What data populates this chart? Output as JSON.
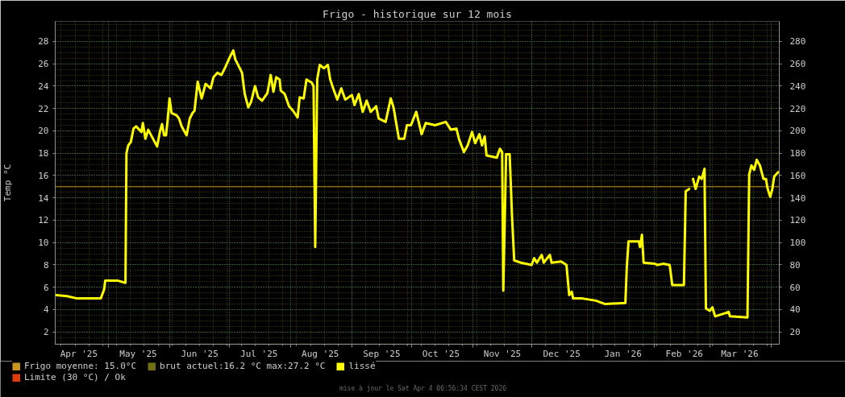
{
  "chart_data": {
    "type": "line",
    "title": "Frigo - historique sur 12 mois",
    "ylabel": "Temp °C",
    "annotations": [
      "mise à jour le Sat Apr 4 06:56:34 CEST 2026"
    ],
    "x": [
      "2025-04-04T12:00",
      "2025-04-10",
      "2025-04-15",
      "2025-04-27",
      "2025-04-28T17:00",
      "2025-04-29T07:00",
      "2025-05-05T10:00",
      "2025-05-09T12:00",
      "2025-05-10T00:00",
      "2025-05-10T22:00",
      "2025-05-12T05:00",
      "2025-05-13T14:00",
      "2025-05-14T22:00",
      "2025-05-17T14:00",
      "2025-05-18T07:00",
      "2025-05-19T14:00",
      "2025-05-21",
      "2025-05-25T12:00",
      "2025-05-27",
      "2025-05-28",
      "2025-05-29",
      "2025-05-30",
      "2025-05-30T19:00",
      "2025-05-31T19:00",
      "2025-06-01T19:00",
      "2025-06-04T07:00",
      "2025-06-05T14:00",
      "2025-06-06T22:00",
      "2025-06-09T10:00",
      "2025-06-11",
      "2025-06-12T10:00",
      "2025-06-13T10:00",
      "2025-06-15",
      "2025-06-17",
      "2025-06-19",
      "2025-06-21T14:00",
      "2025-06-23",
      "2025-06-25",
      "2025-06-27",
      "2025-06-29",
      "2025-07-01",
      "2025-07-03",
      "2025-07-04",
      "2025-07-06",
      "2025-07-07T10:00",
      "2025-07-08T19:00",
      "2025-07-10T14:00",
      "2025-07-12",
      "2025-07-14",
      "2025-07-15T14:00",
      "2025-07-17T14:00",
      "2025-07-20T07:00",
      "2025-07-21T22:00",
      "2025-07-23T07:00",
      "2025-07-24T17:00",
      "2025-07-26T10:00",
      "2025-07-27",
      "2025-07-29",
      "2025-07-31T05:00",
      "2025-08-02T05:00",
      "2025-08-04T12:00",
      "2025-08-05T14:00",
      "2025-08-07T14:00",
      "2025-08-09",
      "2025-08-11T17:00",
      "2025-08-12T14:00",
      "2025-08-13T10:00",
      "2025-08-14T10:00",
      "2025-08-15T17:00",
      "2025-08-17T19:00",
      "2025-08-19T19:00",
      "2025-08-21",
      "2025-08-22T12:00",
      "2025-08-24T14:00",
      "2025-08-26T14:00",
      "2025-08-28T14:00",
      "2025-09-01",
      "2025-09-02T07:00",
      "2025-09-04T10:00",
      "2025-09-06T10:00",
      "2025-09-08T10:00",
      "2025-09-10T12:00",
      "2025-09-13T05:00",
      "2025-09-14T12:00",
      "2025-09-18",
      "2025-09-20T14:00",
      "2025-09-22",
      "2025-09-24T17:00",
      "2025-09-27T10:00",
      "2025-09-28T19:00",
      "2025-09-30T19:00",
      "2025-10-03T12:00",
      "2025-10-06T05:00",
      "2025-10-08T07:00",
      "2025-10-13",
      "2025-10-18T10:00",
      "2025-10-21",
      "2025-10-23T19:00",
      "2025-10-25T05:00",
      "2025-10-27T14:00",
      "2025-10-29T12:00",
      "2025-10-31T17:00",
      "2025-11-02T07:00",
      "2025-11-04T10:00",
      "2025-11-05T17:00",
      "2025-11-07T02:00",
      "2025-11-08",
      "2025-11-13T05:00",
      "2025-11-14T19:00",
      "2025-11-15T22:00",
      "2025-11-16T12:00",
      "2025-11-17T22:00",
      "2025-11-19T17:00",
      "2025-11-20T22:00",
      "2025-11-22",
      "2025-11-25T10:00",
      "2025-11-30T19:00",
      "2025-12-02T02:00",
      "2025-12-03T12:00",
      "2025-12-05T22:00",
      "2025-12-06T22:00",
      "2025-12-10",
      "2025-12-10T22:00",
      "2025-12-15T17:00",
      "2025-12-18T10:00",
      "2025-12-19T19:00",
      "2025-12-21T02:00",
      "2025-12-21T19:00",
      "2025-12-26T12:00",
      "2026-01-02T07:00",
      "2026-01-07",
      "2026-01-17T05:00",
      "2026-01-17T22:00",
      "2026-01-18T19:00",
      "2026-01-24",
      "2026-01-24T14:00",
      "2026-01-25T14:00",
      "2026-01-26T10:00",
      "2026-02-01T02:00",
      "2026-02-02T12:00",
      "2026-02-05T05:00",
      "2026-02-08T14:00",
      "2026-02-09T22:00",
      "2026-02-15T19:00",
      "2026-02-16T17:00",
      "2026-02-18T10:00",
      "2026-02-19T10:00",
      "2026-02-20T10:00",
      "2026-02-21T17:00",
      "2026-02-23T12:00",
      "2026-02-24T19:00",
      "2026-02-26T05:00",
      "2026-02-26T22:00",
      "2026-02-28T22:00",
      "2026-03-02T05:00",
      "2026-03-03T14:00",
      "2026-03-09",
      "2026-03-10T10:00",
      "2026-03-11T02:00",
      "2026-03-19T22:00",
      "2026-03-20T19:00",
      "2026-03-21T22:00",
      "2026-03-23T07:00",
      "2026-03-24T14:00",
      "2026-03-26T05:00",
      "2026-03-28",
      "2026-03-29T07:00",
      "2026-03-30",
      "2026-03-31T10:00",
      "2026-04-01T12:00",
      "2026-04-02T10:00",
      "2026-04-04T10:00"
    ],
    "series": [
      {
        "name": "brut actuel:16.2 °C max:27.2 °C",
        "color": "#707014",
        "values": [
          null,
          null,
          null,
          null,
          null,
          null,
          null,
          null,
          null,
          null,
          null,
          null,
          null,
          null,
          null,
          null,
          null,
          null,
          null,
          null,
          null,
          null,
          null,
          null,
          null,
          null,
          null,
          null,
          null,
          null,
          null,
          null,
          null,
          null,
          null,
          null,
          null,
          null,
          null,
          null,
          null,
          null,
          null,
          null,
          null,
          null,
          null,
          null,
          null,
          null,
          null,
          null,
          null,
          null,
          null,
          null,
          null,
          null,
          null,
          null,
          null,
          null,
          null,
          null,
          null,
          null,
          null,
          null,
          null,
          null,
          null,
          null,
          null,
          null,
          null,
          null,
          null,
          null,
          null,
          null,
          null,
          null,
          null,
          null,
          null,
          null,
          null,
          null,
          null,
          null,
          null,
          null,
          null,
          null,
          null,
          null,
          null,
          null,
          null,
          null,
          null,
          null,
          null,
          null,
          null,
          null,
          null,
          null,
          null,
          null,
          null,
          null,
          null,
          null,
          null,
          null,
          null,
          null,
          null,
          null,
          null,
          null,
          null,
          null,
          null,
          null,
          null,
          null,
          null,
          null,
          null,
          null,
          null,
          null,
          null,
          null,
          null,
          null,
          null,
          null,
          null,
          null,
          null,
          null,
          null,
          null,
          null,
          null,
          null,
          null,
          null,
          null,
          null,
          null,
          null,
          null,
          null,
          null,
          null,
          null,
          null,
          null,
          null,
          null,
          null,
          null,
          null,
          null,
          null,
          null,
          null,
          null
        ]
      },
      {
        "name": "lissé",
        "color": "#ffff00",
        "values": [
          5.3,
          5.2,
          5.0,
          5.0,
          5.8,
          6.6,
          6.6,
          6.4,
          18.0,
          18.7,
          19.0,
          20.2,
          20.4,
          19.9,
          20.7,
          19.3,
          20.1,
          18.6,
          20.0,
          20.6,
          19.6,
          19.6,
          20.9,
          22.9,
          21.6,
          21.4,
          21.1,
          20.4,
          19.6,
          21.1,
          21.6,
          21.8,
          24.4,
          22.9,
          24.2,
          23.8,
          24.8,
          25.2,
          25.0,
          25.7,
          26.5,
          27.2,
          26.4,
          25.7,
          25.2,
          23.3,
          22.1,
          22.6,
          24.0,
          23.0,
          22.7,
          23.4,
          25.0,
          23.5,
          24.8,
          24.6,
          23.6,
          23.3,
          22.2,
          21.8,
          21.2,
          23.0,
          22.9,
          24.6,
          24.3,
          24.0,
          9.6,
          24.6,
          25.9,
          25.6,
          25.9,
          24.6,
          23.8,
          22.8,
          23.8,
          22.8,
          23.2,
          22.3,
          23.3,
          21.7,
          22.7,
          21.7,
          22.2,
          21.1,
          20.8,
          22.9,
          22.1,
          19.3,
          19.3,
          20.5,
          20.5,
          21.7,
          19.7,
          20.7,
          20.5,
          20.8,
          20.1,
          20.2,
          19.2,
          18.1,
          18.7,
          19.9,
          18.9,
          19.7,
          18.7,
          19.5,
          17.8,
          17.6,
          18.4,
          18.1,
          5.7,
          17.9,
          17.9,
          12.3,
          8.4,
          8.2,
          8.0,
          8.6,
          8.2,
          8.9,
          8.2,
          8.9,
          8.2,
          8.3,
          8.0,
          5.3,
          5.6,
          5.0,
          5.0,
          4.8,
          4.5,
          4.6,
          7.8,
          10.1,
          10.1,
          9.6,
          10.7,
          8.2,
          8.1,
          8.0,
          8.1,
          8.0,
          6.2,
          6.2,
          14.6,
          14.8,
          null,
          15.7,
          14.8,
          15.9,
          15.7,
          16.6,
          4.1,
          3.9,
          4.2,
          3.4,
          3.7,
          3.8,
          3.4,
          3.3,
          16.1,
          16.9,
          16.5,
          17.4,
          16.9,
          15.7,
          15.7,
          14.9,
          14.1,
          14.8,
          15.9,
          16.3
        ]
      },
      {
        "name": "Limite (30 °C) / Ok",
        "color": "#e03c0c",
        "values": [
          null,
          null,
          null,
          null,
          null,
          null,
          null,
          null,
          null,
          null,
          null,
          null,
          null,
          null,
          null,
          null,
          null,
          null,
          null,
          null,
          null,
          null,
          null,
          null,
          null,
          null,
          null,
          null,
          null,
          null,
          null,
          null,
          null,
          null,
          null,
          null,
          null,
          null,
          null,
          null,
          null,
          null,
          null,
          null,
          null,
          null,
          null,
          null,
          null,
          null,
          null,
          null,
          null,
          null,
          null,
          null,
          null,
          null,
          null,
          null,
          null,
          null,
          null,
          null,
          null,
          null,
          null,
          null,
          null,
          null,
          null,
          null,
          null,
          null,
          null,
          null,
          null,
          null,
          null,
          null,
          null,
          null,
          null,
          null,
          null,
          null,
          null,
          null,
          null,
          null,
          null,
          null,
          null,
          null,
          null,
          null,
          null,
          null,
          null,
          null,
          null,
          null,
          null,
          null,
          null,
          null,
          null,
          null,
          null,
          null,
          null,
          null,
          null,
          null,
          null,
          null,
          null,
          null,
          null,
          null,
          null,
          null,
          null,
          null,
          null,
          null,
          null,
          null,
          null,
          null,
          null,
          null,
          null,
          null,
          null,
          null,
          null,
          null,
          null,
          null,
          null,
          null,
          null,
          null,
          null,
          null,
          null,
          null,
          null,
          null,
          null,
          null,
          null,
          null,
          null,
          null,
          null,
          null,
          null,
          null,
          null,
          null,
          null,
          null,
          null,
          null,
          null,
          null,
          null,
          null,
          null,
          null
        ]
      }
    ],
    "ref_lines": [
      {
        "axis": "y",
        "value": 15,
        "label": "Frigo moyenne: 15.0°C",
        "color": "#c8961e"
      }
    ],
    "xlim": [
      "2025-04-04",
      "2026-04-05"
    ],
    "xticks": [
      {
        "value": "2025-04-16",
        "label": "Apr '25"
      },
      {
        "value": "2025-05-01",
        "label": null
      },
      {
        "value": "2025-05-16",
        "label": "May '25"
      },
      {
        "value": "2025-06-01",
        "label": null
      },
      {
        "value": "2025-06-16",
        "label": "Jun '25"
      },
      {
        "value": "2025-07-01",
        "label": null
      },
      {
        "value": "2025-07-16",
        "label": "Jul '25"
      },
      {
        "value": "2025-08-01",
        "label": null
      },
      {
        "value": "2025-08-16",
        "label": "Aug '25"
      },
      {
        "value": "2025-09-01",
        "label": null
      },
      {
        "value": "2025-09-16",
        "label": "Sep '25"
      },
      {
        "value": "2025-10-01",
        "label": null
      },
      {
        "value": "2025-10-16",
        "label": "Oct '25"
      },
      {
        "value": "2025-11-01",
        "label": null
      },
      {
        "value": "2025-11-16",
        "label": "Nov '25"
      },
      {
        "value": "2025-12-01",
        "label": null
      },
      {
        "value": "2025-12-16",
        "label": "Dec '25"
      },
      {
        "value": "2026-01-01",
        "label": null
      },
      {
        "value": "2026-01-16",
        "label": "Jan '26"
      },
      {
        "value": "2026-02-01",
        "label": null
      },
      {
        "value": "2026-02-16",
        "label": "Feb '26"
      },
      {
        "value": "2026-03-01",
        "label": null
      },
      {
        "value": "2026-03-16",
        "label": "Mar '26"
      },
      {
        "value": "2026-04-01",
        "label": null
      }
    ],
    "ylim": [
      0.9,
      29.8
    ],
    "yticks": [
      2,
      4,
      6,
      8,
      10,
      12,
      14,
      16,
      18,
      20,
      22,
      24,
      26,
      28
    ],
    "y2lim": [
      9,
      298
    ],
    "y2ticks": [
      20,
      40,
      60,
      80,
      100,
      120,
      140,
      160,
      180,
      200,
      220,
      240,
      260,
      280
    ],
    "grid": true,
    "legend": "bottom"
  }
}
